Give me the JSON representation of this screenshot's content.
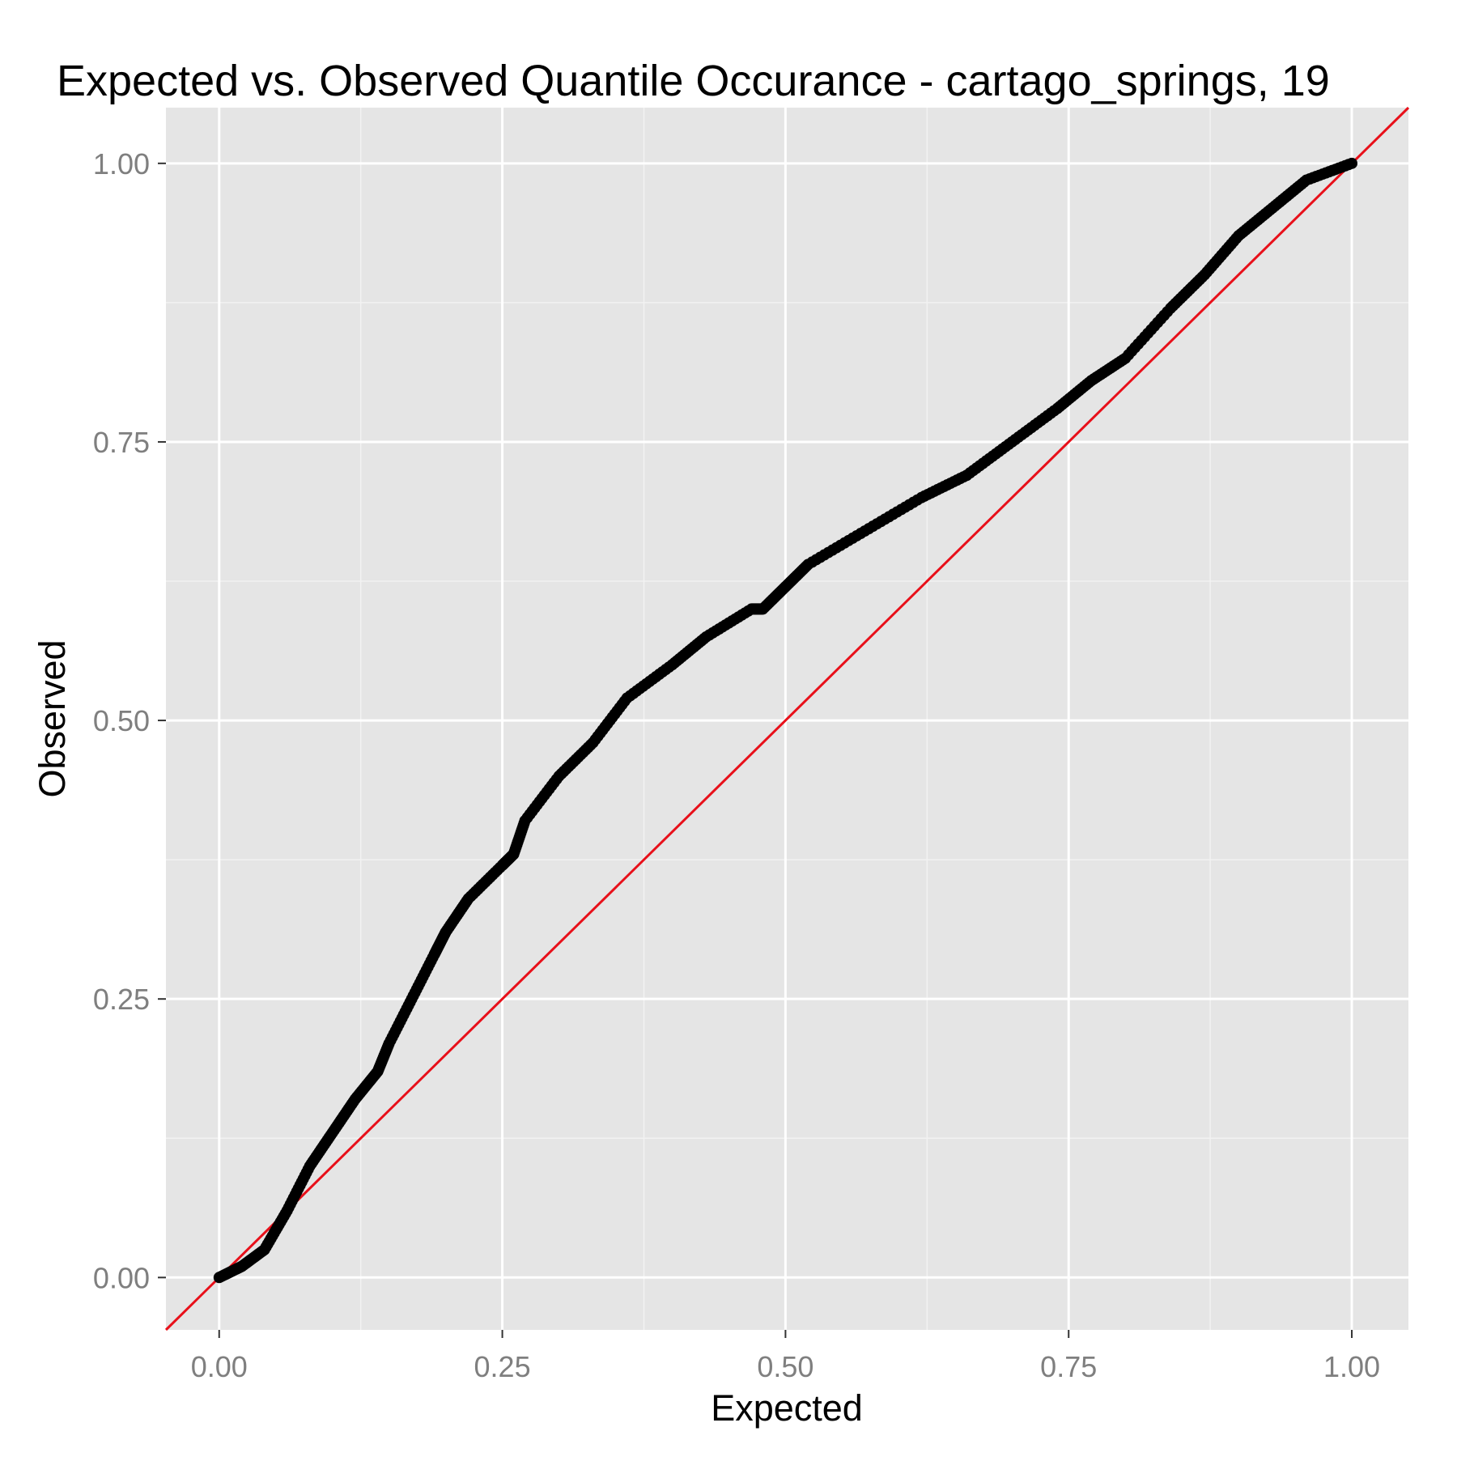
{
  "chart_data": {
    "type": "scatter",
    "title": "Expected vs. Observed Quantile Occurance - cartago_springs, 19",
    "xlabel": "Expected",
    "ylabel": "Observed",
    "xlim": [
      -0.047,
      1.05
    ],
    "ylim": [
      -0.047,
      1.05
    ],
    "x_ticks": [
      0.0,
      0.25,
      0.5,
      0.75,
      1.0
    ],
    "x_tick_labels": [
      "0.00",
      "0.25",
      "0.50",
      "0.75",
      "1.00"
    ],
    "y_ticks": [
      0.0,
      0.25,
      0.5,
      0.75,
      1.0
    ],
    "y_tick_labels": [
      "0.00",
      "0.25",
      "0.50",
      "0.75",
      "1.00"
    ],
    "grid": true,
    "colors": {
      "panel_background": "#e5e5e5",
      "grid_major": "#ffffff",
      "grid_minor": "#f2f2f2",
      "points": "#000000",
      "reference_line": "#e8101a",
      "tick_text": "#7f7f7f"
    },
    "reference_line": {
      "slope": 1,
      "intercept": 0
    },
    "series": [
      {
        "x": [
          0.0,
          0.02,
          0.04,
          0.06,
          0.08,
          0.1,
          0.12,
          0.14,
          0.15,
          0.17,
          0.19,
          0.2,
          0.22,
          0.25,
          0.26,
          0.27,
          0.3,
          0.33,
          0.36,
          0.4,
          0.43,
          0.47,
          0.48,
          0.5,
          0.52,
          0.57,
          0.62,
          0.66,
          0.7,
          0.74,
          0.77,
          0.8,
          0.84,
          0.87,
          0.9,
          0.93,
          0.96,
          1.0
        ],
        "y": [
          0.0,
          0.01,
          0.025,
          0.06,
          0.1,
          0.13,
          0.16,
          0.185,
          0.21,
          0.25,
          0.29,
          0.31,
          0.34,
          0.37,
          0.38,
          0.41,
          0.45,
          0.48,
          0.52,
          0.55,
          0.575,
          0.6,
          0.6,
          0.62,
          0.64,
          0.67,
          0.7,
          0.72,
          0.75,
          0.78,
          0.805,
          0.825,
          0.87,
          0.9,
          0.935,
          0.96,
          0.985,
          1.0
        ]
      }
    ]
  }
}
